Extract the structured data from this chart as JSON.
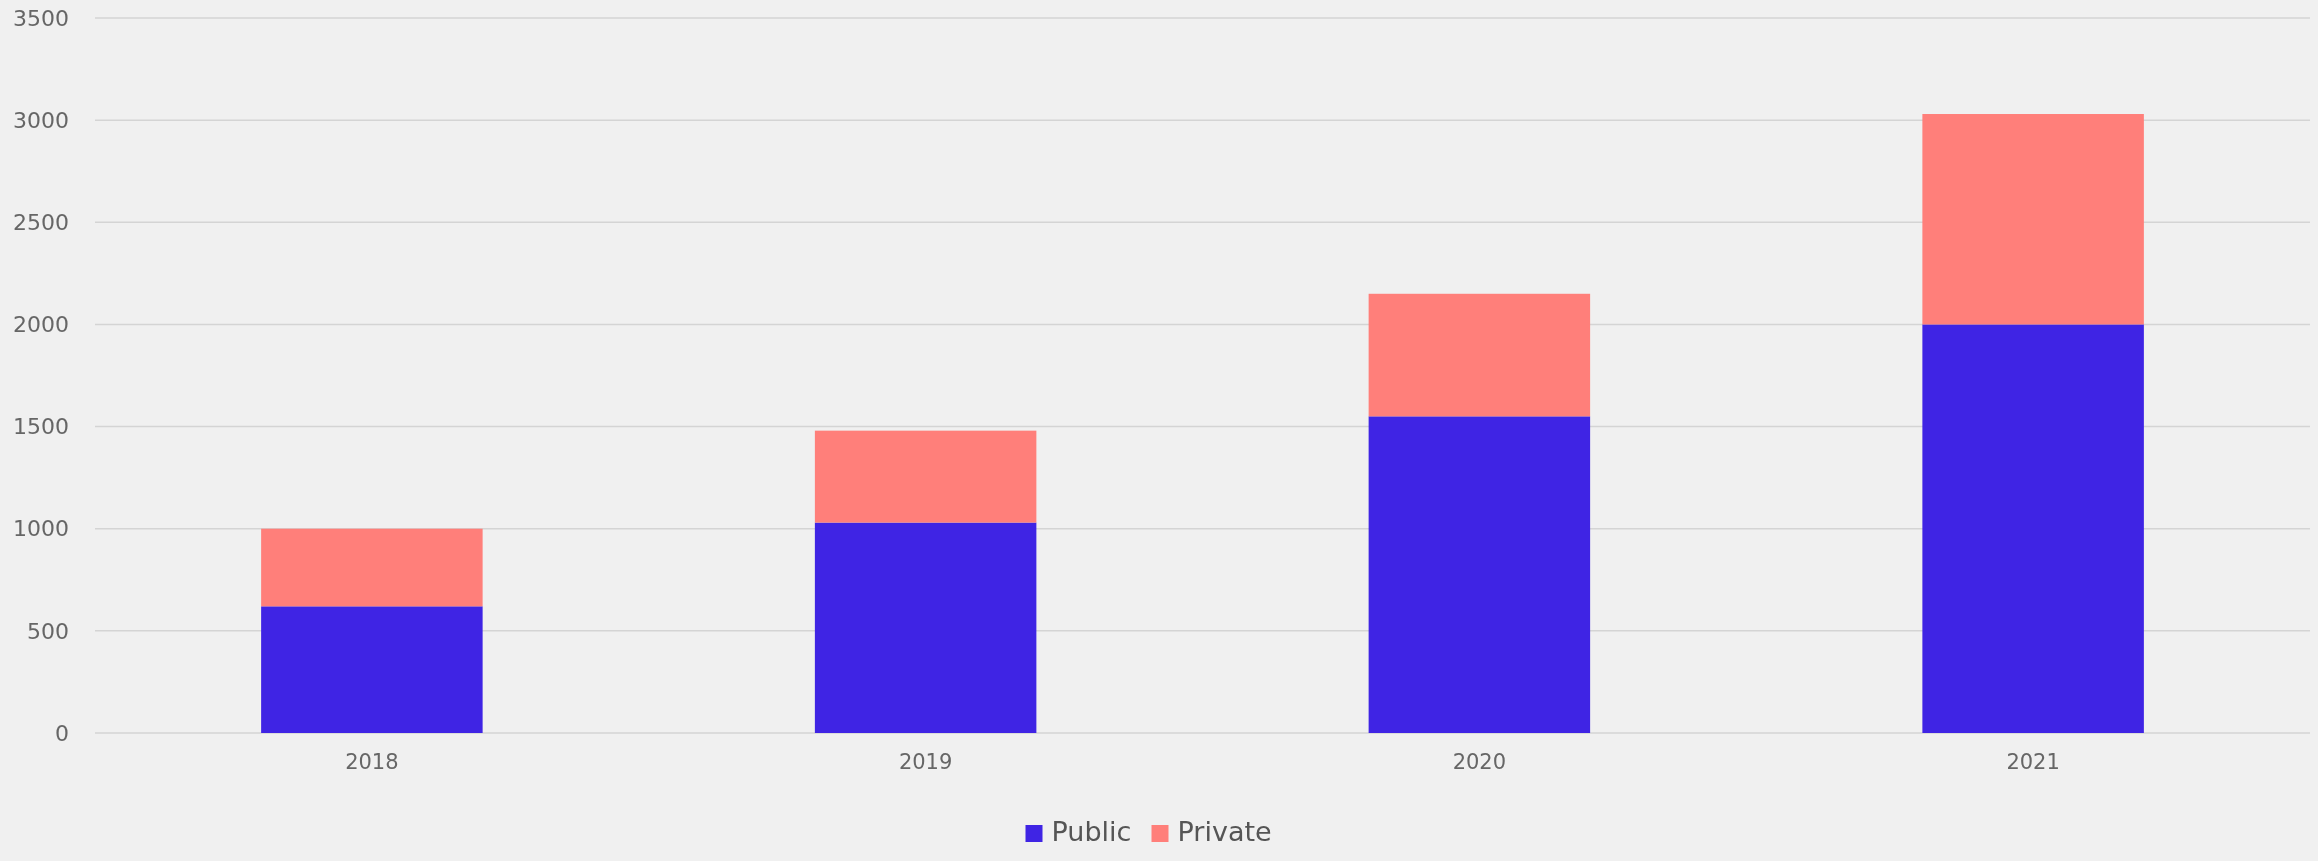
{
  "chart_data": {
    "type": "bar",
    "stacked": true,
    "categories": [
      "2018",
      "2019",
      "2020",
      "2021"
    ],
    "series": [
      {
        "name": "Public",
        "color": "#3f24e4",
        "values": [
          620,
          1030,
          1550,
          2000
        ]
      },
      {
        "name": "Private",
        "color": "#ff7f7a",
        "values": [
          380,
          450,
          600,
          1030
        ]
      }
    ],
    "ylim": [
      0,
      3500
    ],
    "yticks": [
      0,
      500,
      1000,
      1500,
      2000,
      2500,
      3000,
      3500
    ],
    "grid": "y",
    "legend": "bottom"
  }
}
